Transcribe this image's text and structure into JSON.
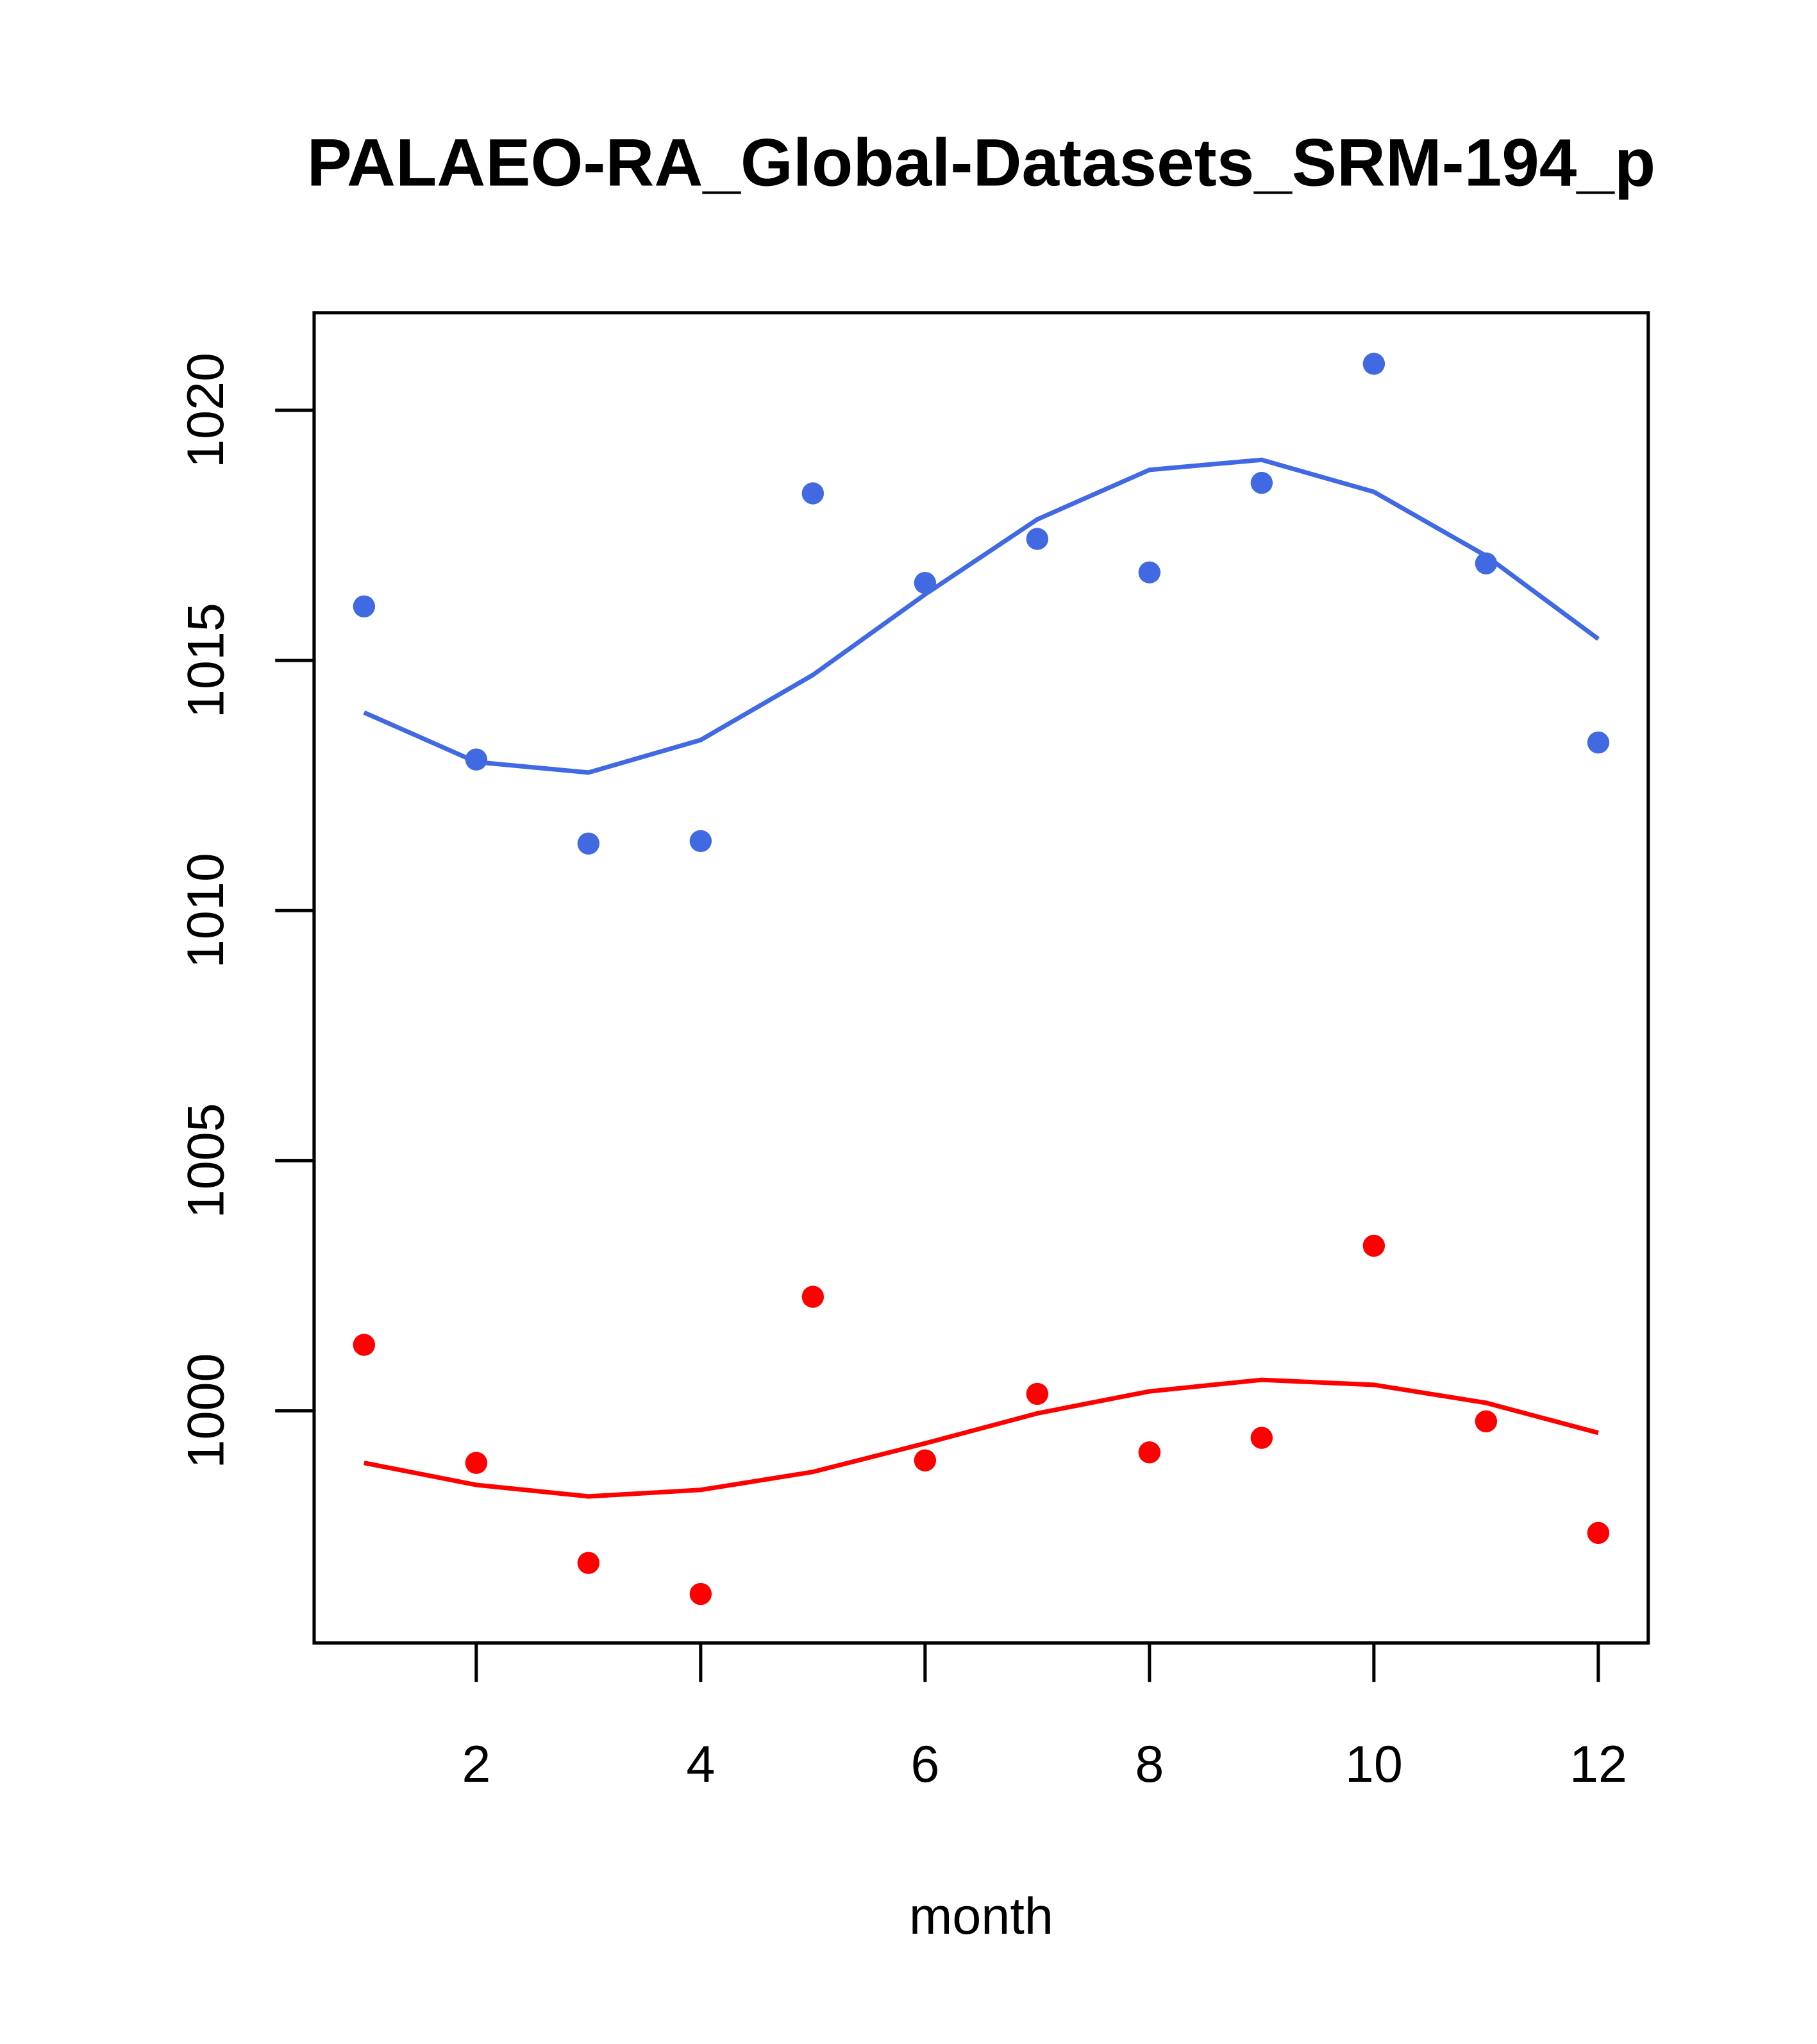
{
  "chart_data": {
    "type": "scatter",
    "title": "PALAEO-RA_Global-Datasets_SRM-194_p",
    "xlabel": "month",
    "ylabel": "",
    "xlim": [
      0.555,
      12.445
    ],
    "ylim": [
      995.36,
      1021.95
    ],
    "xticks": [
      2,
      4,
      6,
      8,
      10,
      12
    ],
    "yticks": [
      1000,
      1005,
      1010,
      1015,
      1020
    ],
    "grid": false,
    "x": [
      1,
      2,
      3,
      4,
      5,
      6,
      7,
      8,
      9,
      10,
      11,
      12
    ],
    "series": [
      {
        "name": "blue points",
        "kind": "points",
        "color": "#4169E1",
        "values": [
          1016.08,
          1013.02,
          1011.34,
          1011.39,
          1018.34,
          1016.55,
          1017.43,
          1016.76,
          1018.55,
          1020.93,
          1016.94,
          1013.36
        ]
      },
      {
        "name": "blue line",
        "kind": "line",
        "color": "#4169E1",
        "values": [
          1013.96,
          1012.97,
          1012.76,
          1013.41,
          1014.71,
          1016.32,
          1017.82,
          1018.81,
          1019.01,
          1018.37,
          1017.09,
          1015.43
        ]
      },
      {
        "name": "red points",
        "kind": "points",
        "color": "#FF0000",
        "values": [
          1001.32,
          998.96,
          996.96,
          996.34,
          1002.28,
          999.01,
          1000.34,
          999.17,
          999.46,
          1003.3,
          999.79,
          997.56
        ]
      },
      {
        "name": "red line",
        "kind": "line",
        "color": "#FF0000",
        "values": [
          998.96,
          998.52,
          998.29,
          998.42,
          998.78,
          999.35,
          999.95,
          1000.39,
          1000.62,
          1000.52,
          1000.16,
          999.56
        ]
      }
    ]
  }
}
